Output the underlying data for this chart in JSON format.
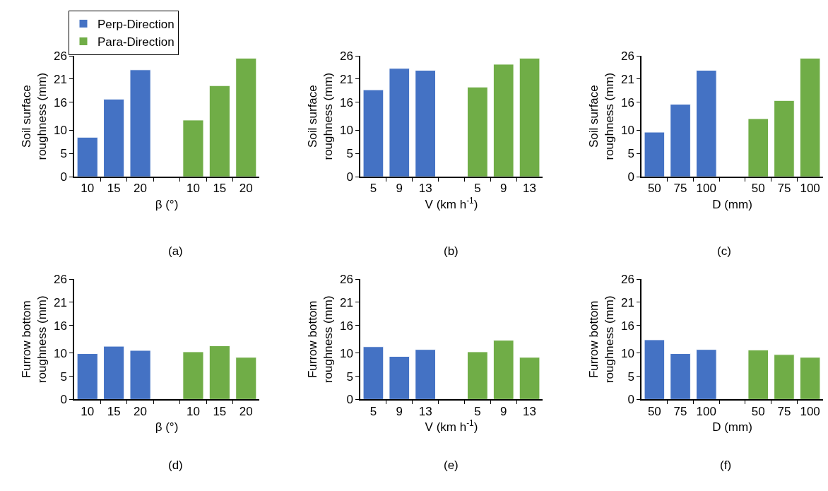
{
  "chart_data": [
    {
      "type": "bar",
      "categories": [
        "10",
        "15",
        "20",
        null,
        "10",
        "15",
        "20"
      ],
      "xlabel": "β (°)",
      "ylabel": "Soil surface roughness (mm)",
      "ylim": [
        0,
        26
      ],
      "yticks": [
        0,
        5,
        10,
        16,
        21,
        26
      ],
      "legend": "top",
      "annotations": [
        "(a)"
      ],
      "series": [
        {
          "name": "Perp-Direction",
          "color": "#4472c4",
          "values": [
            8.5,
            16.7,
            23.0,
            null,
            null,
            null,
            null
          ]
        },
        {
          "name": "Para-Direction",
          "color": "#70ad47",
          "values": [
            null,
            null,
            null,
            null,
            12.2,
            19.6,
            25.5
          ]
        }
      ]
    },
    {
      "type": "bar",
      "categories": [
        "5",
        "9",
        "13",
        null,
        "5",
        "9",
        "13"
      ],
      "xlabel": "V (km h$^{-1}$)",
      "ylabel": "Soil surface roughness (mm)",
      "ylim": [
        0,
        26
      ],
      "yticks": [
        0,
        5,
        10,
        16,
        21,
        26
      ],
      "annotations": [
        "(b)"
      ],
      "series": [
        {
          "color": "#4472c4",
          "values": [
            18.7,
            23.3,
            22.9,
            null,
            null,
            null,
            null
          ]
        },
        {
          "color": "#70ad47",
          "values": [
            null,
            null,
            null,
            null,
            19.3,
            24.2,
            25.5
          ]
        }
      ]
    },
    {
      "type": "bar",
      "categories": [
        "50",
        "75",
        "100",
        null,
        "50",
        "75",
        "100"
      ],
      "xlabel": "D (mm)",
      "ylabel": "Soil surface roughness (mm)",
      "ylim": [
        0,
        26
      ],
      "yticks": [
        0,
        5,
        10,
        16,
        21,
        26
      ],
      "annotations": [
        "(c)"
      ],
      "series": [
        {
          "color": "#4472c4",
          "values": [
            9.6,
            15.6,
            22.9,
            null,
            null,
            null,
            null
          ]
        },
        {
          "color": "#70ad47",
          "values": [
            null,
            null,
            null,
            null,
            12.5,
            16.4,
            25.5
          ]
        }
      ]
    },
    {
      "type": "bar",
      "categories": [
        "10",
        "15",
        "20",
        null,
        "10",
        "15",
        "20"
      ],
      "xlabel": "β (°)",
      "ylabel": "Furrow bottom roughness (mm)",
      "ylim": [
        0,
        26
      ],
      "yticks": [
        0,
        5,
        10,
        16,
        21,
        26
      ],
      "annotations": [
        "(d)"
      ],
      "series": [
        {
          "color": "#4472c4",
          "values": [
            9.9,
            11.5,
            10.6,
            null,
            null,
            null,
            null
          ]
        },
        {
          "color": "#70ad47",
          "values": [
            null,
            null,
            null,
            null,
            10.3,
            11.6,
            9.1
          ]
        }
      ]
    },
    {
      "type": "bar",
      "categories": [
        "5",
        "9",
        "13",
        null,
        "5",
        "9",
        "13"
      ],
      "xlabel": "V (km h$^{-1}$)",
      "ylabel": "Furrow bottom roughness (mm)",
      "ylim": [
        0,
        26
      ],
      "yticks": [
        0,
        5,
        10,
        16,
        21,
        26
      ],
      "annotations": [
        "(e)"
      ],
      "series": [
        {
          "color": "#4472c4",
          "values": [
            11.4,
            9.3,
            10.8,
            null,
            null,
            null,
            null
          ]
        },
        {
          "color": "#70ad47",
          "values": [
            null,
            null,
            null,
            null,
            10.3,
            12.8,
            9.1
          ]
        }
      ]
    },
    {
      "type": "bar",
      "categories": [
        "50",
        "75",
        "100",
        null,
        "50",
        "75",
        "100"
      ],
      "xlabel": "D (mm)",
      "ylabel": "Furrow bottom roughness (mm)",
      "ylim": [
        0,
        26
      ],
      "yticks": [
        0,
        5,
        10,
        16,
        21,
        26
      ],
      "annotations": [
        "(f)"
      ],
      "series": [
        {
          "color": "#4472c4",
          "values": [
            12.9,
            9.9,
            10.8,
            null,
            null,
            null,
            null
          ]
        },
        {
          "color": "#70ad47",
          "values": [
            null,
            null,
            null,
            null,
            10.7,
            9.7,
            9.1
          ]
        }
      ]
    }
  ]
}
